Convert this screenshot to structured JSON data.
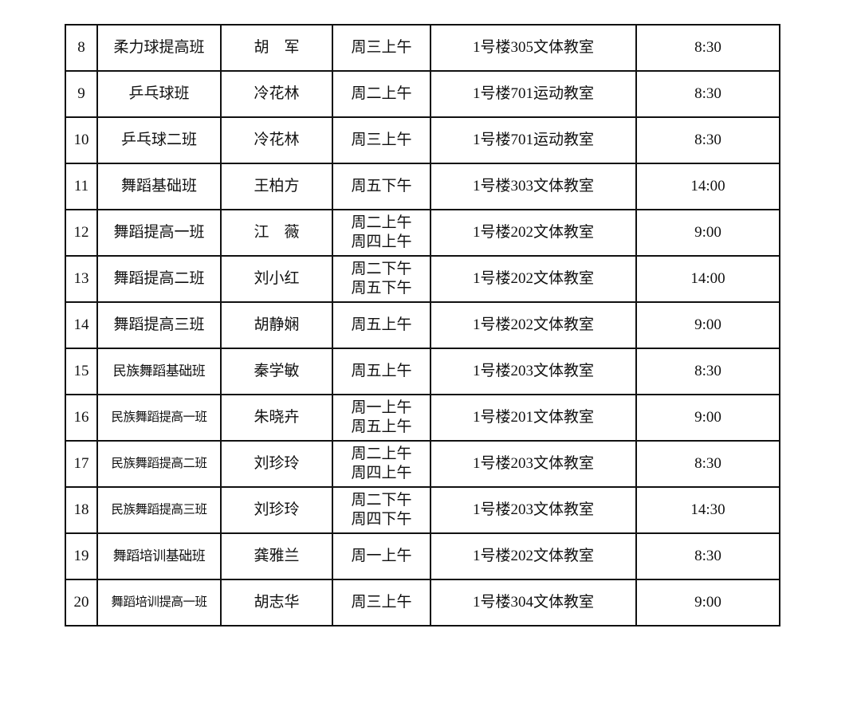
{
  "rows": [
    {
      "no": "8",
      "course": "柔力球提高班",
      "teacher": "胡　军",
      "time": [
        "周三上午"
      ],
      "room": "1号楼305文体教室",
      "start": "8:30"
    },
    {
      "no": "9",
      "course": "乒乓球班",
      "teacher": "冷花林",
      "time": [
        "周二上午"
      ],
      "room": "1号楼701运动教室",
      "start": "8:30"
    },
    {
      "no": "10",
      "course": "乒乓球二班",
      "teacher": "冷花林",
      "time": [
        "周三上午"
      ],
      "room": "1号楼701运动教室",
      "start": "8:30"
    },
    {
      "no": "11",
      "course": "舞蹈基础班",
      "teacher": "王柏方",
      "time": [
        "周五下午"
      ],
      "room": "1号楼303文体教室",
      "start": "14:00"
    },
    {
      "no": "12",
      "course": "舞蹈提高一班",
      "teacher": "江　薇",
      "time": [
        "周二上午",
        "周四上午"
      ],
      "room": "1号楼202文体教室",
      "start": "9:00"
    },
    {
      "no": "13",
      "course": "舞蹈提高二班",
      "teacher": "刘小红",
      "time": [
        "周二下午",
        "周五下午"
      ],
      "room": "1号楼202文体教室",
      "start": "14:00"
    },
    {
      "no": "14",
      "course": "舞蹈提高三班",
      "teacher": "胡静娴",
      "time": [
        "周五上午"
      ],
      "room": "1号楼202文体教室",
      "start": "9:00"
    },
    {
      "no": "15",
      "course": "民族舞蹈基础班",
      "teacher": "秦学敏",
      "time": [
        "周五上午"
      ],
      "room": "1号楼203文体教室",
      "start": "8:30"
    },
    {
      "no": "16",
      "course": "民族舞蹈提高一班",
      "teacher": "朱晓卉",
      "time": [
        "周一上午",
        "周五上午"
      ],
      "room": "1号楼201文体教室",
      "start": "9:00"
    },
    {
      "no": "17",
      "course": "民族舞蹈提高二班",
      "teacher": "刘珍玲",
      "time": [
        "周二上午",
        "周四上午"
      ],
      "room": "1号楼203文体教室",
      "start": "8:30"
    },
    {
      "no": "18",
      "course": "民族舞蹈提高三班",
      "teacher": "刘珍玲",
      "time": [
        "周二下午",
        "周四下午"
      ],
      "room": "1号楼203文体教室",
      "start": "14:30"
    },
    {
      "no": "19",
      "course": "舞蹈培训基础班",
      "teacher": "龚雅兰",
      "time": [
        "周一上午"
      ],
      "room": "1号楼202文体教室",
      "start": "8:30"
    },
    {
      "no": "20",
      "course": "舞蹈培训提高一班",
      "teacher": "胡志华",
      "time": [
        "周三上午"
      ],
      "room": "1号楼304文体教室",
      "start": "9:00"
    }
  ]
}
